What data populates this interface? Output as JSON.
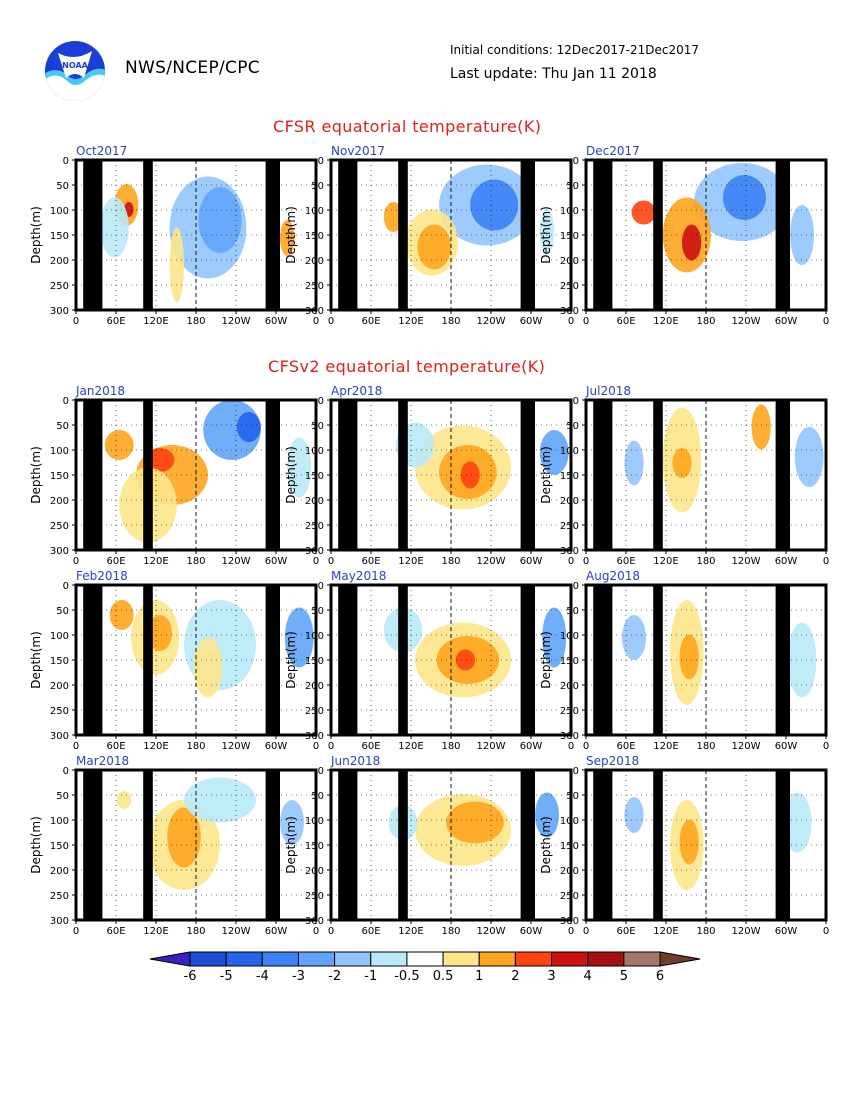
{
  "header": {
    "logo_text": "NOAA",
    "org": "NWS/NCEP/CPC",
    "initial_conditions": "Initial conditions: 12Dec2017-21Dec2017",
    "last_update": "Last update: Thu Jan 11 2018"
  },
  "sections": {
    "cfsr_title": "CFSR equatorial temperature(K)",
    "cfsv2_title": "CFSv2 equatorial temperature(K)"
  },
  "colors": {
    "frame": "#000000",
    "panel_title": "#2a3fcf",
    "section_title": "#e0201e"
  },
  "chart_data": {
    "type": "heatmap",
    "ylabel": "Depth(m)",
    "y_ticks": [
      "0",
      "50",
      "100",
      "150",
      "200",
      "250",
      "300"
    ],
    "x_ticks": [
      "0",
      "60E",
      "120E",
      "180",
      "120W",
      "60W",
      "0"
    ],
    "ylim": [
      300,
      0
    ],
    "panels": [
      {
        "title": "Oct2017",
        "section": "CFSR"
      },
      {
        "title": "Nov2017",
        "section": "CFSR"
      },
      {
        "title": "Dec2017",
        "section": "CFSR"
      },
      {
        "title": "Jan2018",
        "section": "CFSv2"
      },
      {
        "title": "Apr2018",
        "section": "CFSv2"
      },
      {
        "title": "Jul2018",
        "section": "CFSv2"
      },
      {
        "title": "Feb2018",
        "section": "CFSv2"
      },
      {
        "title": "May2018",
        "section": "CFSv2"
      },
      {
        "title": "Aug2018",
        "section": "CFSv2"
      },
      {
        "title": "Mar2018",
        "section": "CFSv2"
      },
      {
        "title": "Jun2018",
        "section": "CFSv2"
      },
      {
        "title": "Sep2018",
        "section": "CFSv2"
      }
    ],
    "colorbar": {
      "labels": [
        "-6",
        "-5",
        "-4",
        "-3",
        "-2",
        "-1",
        "-0.5",
        "0.5",
        "1",
        "2",
        "3",
        "4",
        "5",
        "6"
      ],
      "colors": [
        "#3a22c2",
        "#1d4ed8",
        "#2563eb",
        "#3b82f6",
        "#60a5fa",
        "#93c5fd",
        "#b9e9f7",
        "#ffffff",
        "#fde58a",
        "#ffa51f",
        "#ff4411",
        "#cc1111",
        "#a40f10",
        "#a5776c",
        "#6e3e2a"
      ]
    }
  }
}
